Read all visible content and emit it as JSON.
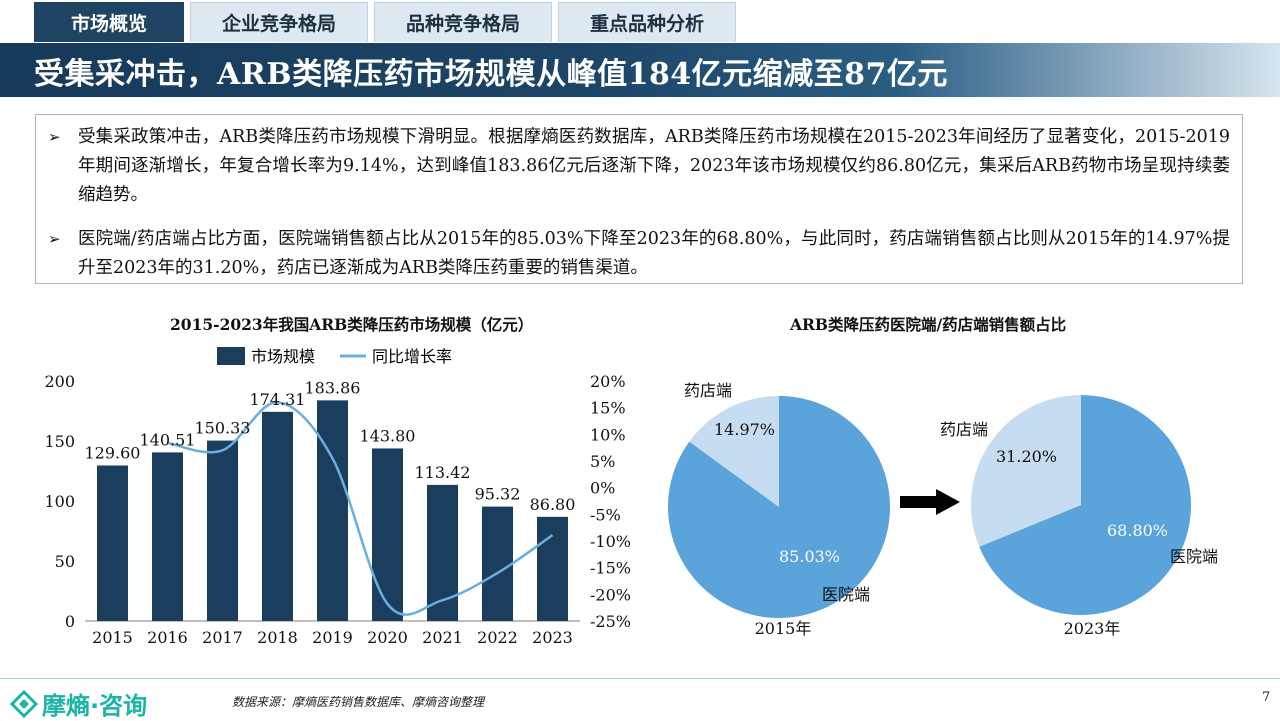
{
  "tabs": [
    "市场概览",
    "企业竞争格局",
    "品种竞争格局",
    "重点品种分析"
  ],
  "title": "受集采冲击，ARB类降压药市场规模从峰值184亿元缩减至87亿元",
  "bullets": [
    "受集采政策冲击，ARB类降压药市场规模下滑明显。根据摩熵医药数据库，ARB类降压药市场规模在2015-2023年间经历了显著变化，2015-2019年期间逐渐增长，年复合增长率为9.14%，达到峰值183.86亿元后逐渐下降，2023年该市场规模仅约86.80亿元，集采后ARB药物市场呈现持续萎缩趋势。",
    "医院端/药店端占比方面，医院端销售额占比从2015年的85.03%下降至2023年的68.80%，与此同时，药店端销售额占比则从2015年的14.97%提升至2023年的31.20%，药店已逐渐成为ARB类降压药重要的销售渠道。"
  ],
  "colors": {
    "bar": "#1b3e5f",
    "line": "#6aaee0",
    "pie_hospital": "#5aa3db",
    "pie_pharmacy": "#c6dcf0",
    "arrow": "#000000"
  },
  "chart_data": [
    {
      "type": "bar",
      "title": "2015-2023年我国ARB类降压药市场规模（亿元）",
      "categories": [
        "2015",
        "2016",
        "2017",
        "2018",
        "2019",
        "2020",
        "2021",
        "2022",
        "2023"
      ],
      "series": [
        {
          "name": "市场规模",
          "type": "bar",
          "axis": "left",
          "values": [
            129.6,
            140.51,
            150.33,
            174.31,
            183.86,
            143.8,
            113.42,
            95.32,
            86.8
          ],
          "labels": [
            "129.60",
            "140.51",
            "150.33",
            "174.31",
            "183.86",
            "143.80",
            "113.42",
            "95.32",
            "86.80"
          ]
        },
        {
          "name": "同比增长率",
          "type": "line",
          "axis": "right",
          "values": [
            null,
            8.4,
            7.0,
            16.0,
            5.5,
            -21.8,
            -21.1,
            -16.0,
            -8.9
          ]
        }
      ],
      "left_axis": {
        "min": 0,
        "max": 200,
        "ticks": [
          "0",
          "50",
          "100",
          "150",
          "200"
        ]
      },
      "right_axis": {
        "min": -25,
        "max": 20,
        "ticks": [
          "-25%",
          "-20%",
          "-15%",
          "-10%",
          "-5%",
          "0%",
          "5%",
          "10%",
          "15%",
          "20%"
        ]
      },
      "legend": "top"
    },
    {
      "type": "pie",
      "title": "ARB类降压药医院端/药店端销售额占比",
      "pies": [
        {
          "year": "2015年",
          "slices": [
            {
              "name": "药店端",
              "value": 14.97,
              "label": "14.97%"
            },
            {
              "name": "医院端",
              "value": 85.03,
              "label": "85.03%"
            }
          ]
        },
        {
          "year": "2023年",
          "slices": [
            {
              "name": "药店端",
              "value": 31.2,
              "label": "31.20%"
            },
            {
              "name": "医院端",
              "value": 68.8,
              "label": "68.80%"
            }
          ]
        }
      ]
    }
  ],
  "footer": {
    "logo": "摩熵·咨询",
    "source": "数据来源：摩熵医药销售数据库、摩熵咨询整理",
    "page": "7"
  }
}
